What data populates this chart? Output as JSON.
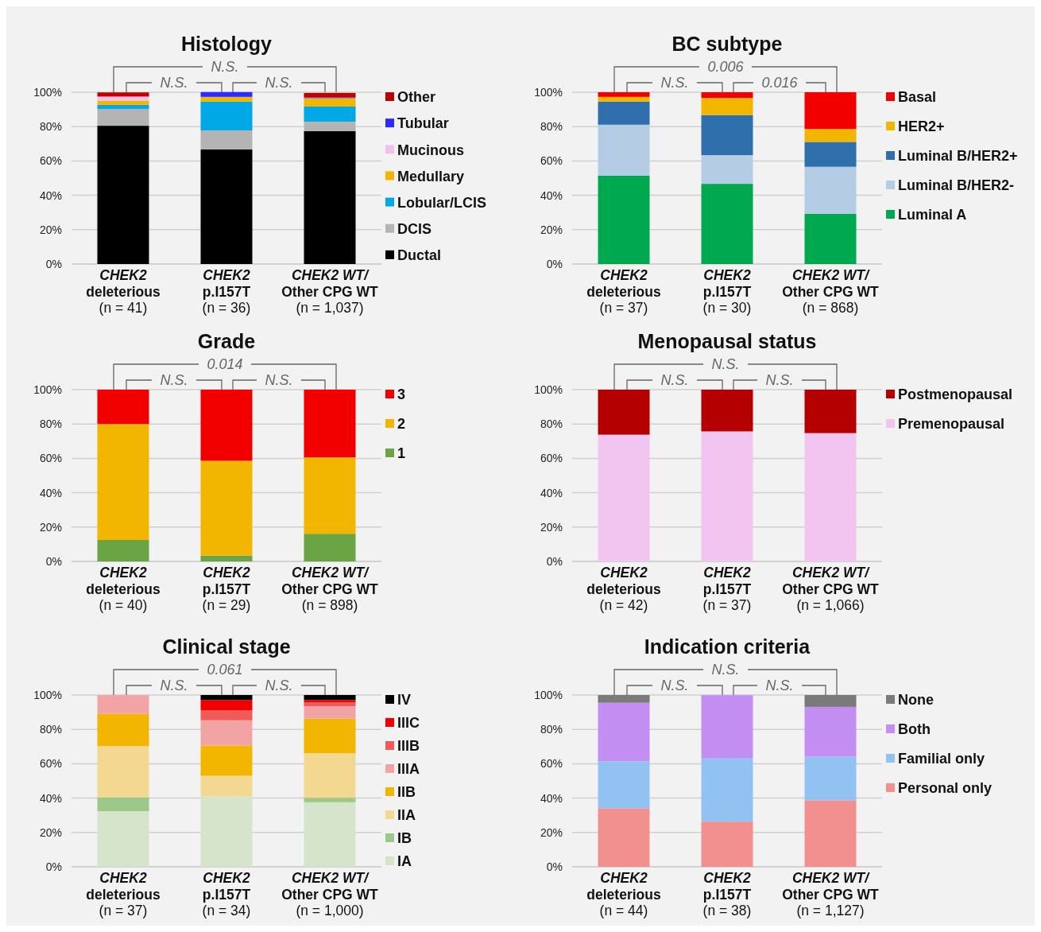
{
  "chart_data": [
    {
      "type": "bar",
      "stacked": true,
      "title": "Histology",
      "categories": [
        "CHEK2\ndeleterious\n(n = 41)",
        "CHEK2\np.I157T\n(n = 36)",
        "CHEK2 WT/\nOther CPG WT\n(n = 1,037)"
      ],
      "ylim": [
        0,
        100
      ],
      "yticks": [
        {
          "value": 0,
          "label": "0%"
        },
        {
          "value": 20,
          "label": "20%"
        },
        {
          "value": 40,
          "label": "40%"
        },
        {
          "value": 60,
          "label": "60%"
        },
        {
          "value": 80,
          "label": "80%"
        },
        {
          "value": 100,
          "label": "100%"
        }
      ],
      "grid": "y",
      "legend": "right",
      "annotations": [
        "N.S.",
        "N.S.",
        "N.S."
      ],
      "series": [
        {
          "name": "Ductal",
          "color": "#000000",
          "values": [
            80.5,
            66.7,
            77.4
          ]
        },
        {
          "name": "DCIS",
          "color": "#b4b4b4",
          "values": [
            9.8,
            11.1,
            5.5
          ]
        },
        {
          "name": "Lobular/LCIS",
          "color": "#00a8e6",
          "values": [
            2.4,
            16.7,
            8.8
          ]
        },
        {
          "name": "Medullary",
          "color": "#f2b600",
          "values": [
            2.4,
            2.8,
            4.9
          ]
        },
        {
          "name": "Mucinous",
          "color": "#f2c0ee",
          "values": [
            2.4,
            0,
            null
          ]
        },
        {
          "name": "Tubular",
          "color": "#2b2bff",
          "values": [
            0,
            2.8,
            0.5
          ]
        },
        {
          "name": "Other",
          "color": "#c00000",
          "values": [
            2.4,
            0,
            2.5
          ]
        }
      ]
    },
    {
      "type": "bar",
      "stacked": true,
      "title": "BC subtype",
      "categories": [
        "CHEK2\ndeleterious\n(n = 37)",
        "CHEK2\np.I157T\n(n = 30)",
        "CHEK2 WT/\nOther CPG WT\n(n = 868)"
      ],
      "ylim": [
        0,
        100
      ],
      "yticks": [
        {
          "value": 0,
          "label": "0%"
        },
        {
          "value": 20,
          "label": "20%"
        },
        {
          "value": 40,
          "label": "40%"
        },
        {
          "value": 60,
          "label": "60%"
        },
        {
          "value": 80,
          "label": "80%"
        },
        {
          "value": 100,
          "label": "100%"
        }
      ],
      "grid": "y",
      "legend": "right",
      "annotations": [
        "0.006",
        "N.S.",
        "0.016"
      ],
      "series": [
        {
          "name": "Luminal A",
          "color": "#00a84f",
          "values": [
            51.4,
            46.7,
            29.2
          ]
        },
        {
          "name": "Luminal B/HER2-",
          "color": "#b4cce4",
          "values": [
            29.7,
            16.7,
            27.4
          ]
        },
        {
          "name": "Luminal B/HER2+",
          "color": "#2e6fac",
          "values": [
            13.5,
            23.3,
            14.5
          ]
        },
        {
          "name": "HER2+",
          "color": "#f2b600",
          "values": [
            2.7,
            10,
            7.5
          ]
        },
        {
          "name": "Basal",
          "color": "#f20000",
          "values": [
            2.7,
            3.3,
            21.4
          ]
        }
      ]
    },
    {
      "type": "bar",
      "stacked": true,
      "title": "Grade",
      "categories": [
        "CHEK2\ndeleterious\n(n = 40)",
        "CHEK2\np.I157T\n(n = 29)",
        "CHEK2 WT/\nOther CPG WT\n(n = 898)"
      ],
      "ylim": [
        0,
        100
      ],
      "yticks": [
        {
          "value": 0,
          "label": "0%"
        },
        {
          "value": 20,
          "label": "20%"
        },
        {
          "value": 40,
          "label": "40%"
        },
        {
          "value": 60,
          "label": "60%"
        },
        {
          "value": 80,
          "label": "80%"
        },
        {
          "value": 100,
          "label": "100%"
        }
      ],
      "grid": "y",
      "legend": "right",
      "annotations": [
        "0.014",
        "N.S.",
        "N.S."
      ],
      "series": [
        {
          "name": "1",
          "color": "#6aa444",
          "values": [
            12.5,
            3.4,
            16.1
          ]
        },
        {
          "name": "2",
          "color": "#f2b600",
          "values": [
            67.5,
            55.2,
            44.5
          ]
        },
        {
          "name": "3",
          "color": "#f20000",
          "values": [
            20,
            41.4,
            39.4
          ]
        }
      ]
    },
    {
      "type": "bar",
      "stacked": true,
      "title": "Menopausal status",
      "categories": [
        "CHEK2\ndeleterious\n(n = 42)",
        "CHEK2\np.I157T\n(n = 37)",
        "CHEK2 WT/\nOther CPG WT\n(n = 1,066)"
      ],
      "ylim": [
        0,
        100
      ],
      "yticks": [
        {
          "value": 0,
          "label": "0%"
        },
        {
          "value": 20,
          "label": "20%"
        },
        {
          "value": 40,
          "label": "40%"
        },
        {
          "value": 60,
          "label": "60%"
        },
        {
          "value": 80,
          "label": "80%"
        },
        {
          "value": 100,
          "label": "100%"
        }
      ],
      "grid": "y",
      "legend": "right",
      "annotations": [
        "N.S.",
        "N.S.",
        "N.S."
      ],
      "series": [
        {
          "name": "Premenopausal",
          "color": "#f2c4f0",
          "values": [
            73.8,
            75.7,
            74.7
          ]
        },
        {
          "name": "Postmenopausal",
          "color": "#b40000",
          "values": [
            26.2,
            24.3,
            25.3
          ]
        }
      ]
    },
    {
      "type": "bar",
      "stacked": true,
      "title": "Clinical stage",
      "categories": [
        "CHEK2\ndeleterious\n(n = 37)",
        "CHEK2\np.I157T\n(n = 34)",
        "CHEK2 WT/\nOther CPG WT\n(n = 1,000)"
      ],
      "ylim": [
        0,
        100
      ],
      "yticks": [
        {
          "value": 0,
          "label": "0%"
        },
        {
          "value": 20,
          "label": "20%"
        },
        {
          "value": 40,
          "label": "40%"
        },
        {
          "value": 60,
          "label": "60%"
        },
        {
          "value": 80,
          "label": "80%"
        },
        {
          "value": 100,
          "label": "100%"
        }
      ],
      "grid": "y",
      "legend": "right",
      "annotations": [
        "0.061",
        "N.S.",
        "N.S."
      ],
      "series": [
        {
          "name": "IA",
          "color": "#d6e4cc",
          "values": [
            32.4,
            41.2,
            37.6
          ]
        },
        {
          "name": "IB",
          "color": "#9ec78a",
          "values": [
            8.1,
            0,
            2.6
          ]
        },
        {
          "name": "IIA",
          "color": "#f2d890",
          "values": [
            29.7,
            11.8,
            26
          ]
        },
        {
          "name": "IIB",
          "color": "#f2b600",
          "values": [
            18.9,
            17.6,
            20.1
          ]
        },
        {
          "name": "IIIA",
          "color": "#f2a4a4",
          "values": [
            10.8,
            14.7,
            7.2
          ]
        },
        {
          "name": "IIIB",
          "color": "#f25a5a",
          "values": [
            0,
            5.9,
            2.2
          ]
        },
        {
          "name": "IIIC",
          "color": "#f20000",
          "values": [
            0,
            5.9,
            1.4
          ]
        },
        {
          "name": "IV",
          "color": "#000000",
          "values": [
            0,
            2.9,
            2.9
          ]
        }
      ]
    },
    {
      "type": "bar",
      "stacked": true,
      "title": "Indication criteria",
      "categories": [
        "CHEK2\ndeleterious\n(n = 44)",
        "CHEK2\np.I157T\n(n = 38)",
        "CHEK2 WT/\nOther CPG WT\n(n = 1,127)"
      ],
      "ylim": [
        0,
        100
      ],
      "yticks": [
        {
          "value": 0,
          "label": "0%"
        },
        {
          "value": 20,
          "label": "20%"
        },
        {
          "value": 40,
          "label": "40%"
        },
        {
          "value": 60,
          "label": "60%"
        },
        {
          "value": 80,
          "label": "80%"
        },
        {
          "value": 100,
          "label": "100%"
        }
      ],
      "grid": "y",
      "legend": "right",
      "annotations": [
        "N.S.",
        "N.S.",
        "N.S."
      ],
      "series": [
        {
          "name": "Personal only",
          "color": "#f29090",
          "values": [
            34.1,
            26.3,
            38.7
          ]
        },
        {
          "name": "Familial only",
          "color": "#92c2f2",
          "values": [
            27.3,
            36.8,
            25.4
          ]
        },
        {
          "name": "Both",
          "color": "#c28ef2",
          "values": [
            34.1,
            36.8,
            29
          ]
        },
        {
          "name": "None",
          "color": "#7a7a7a",
          "values": [
            4.5,
            0,
            6.9
          ]
        }
      ]
    }
  ]
}
